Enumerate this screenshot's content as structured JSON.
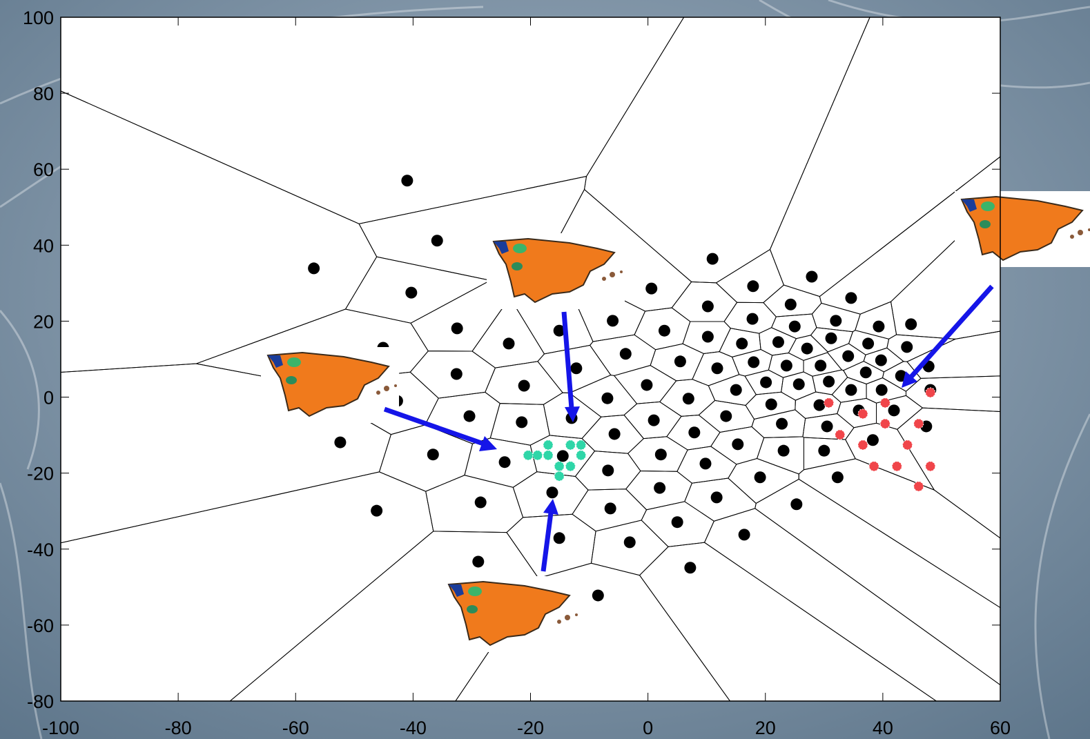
{
  "chart_data": {
    "type": "scatter",
    "xlim": [
      -100,
      60
    ],
    "ylim": [
      -80,
      100
    ],
    "xticks": [
      -100,
      -80,
      -60,
      -40,
      -20,
      0,
      20,
      40,
      60
    ],
    "yticks": [
      -80,
      -60,
      -40,
      -20,
      0,
      20,
      40,
      60,
      80,
      100
    ],
    "voronoi": true,
    "series": [
      {
        "color": "#000000",
        "x": [
          -41.0,
          -35.9,
          -56.9,
          -40.3,
          11.0,
          17.9,
          27.9,
          0.6,
          24.3,
          34.6,
          10.2,
          17.8,
          -6.0,
          2.8,
          25.0,
          32.0,
          39.3,
          44.8,
          -32.5,
          -15.1,
          -23.7,
          10.2,
          16.0,
          22.2,
          27.1,
          31.2,
          37.5,
          44.1,
          -3.8,
          -45.1,
          -12.2,
          5.5,
          11.8,
          18.0,
          23.6,
          29.4,
          34.1,
          39.7,
          47.8,
          -32.6,
          37.1,
          20.1,
          25.7,
          30.8,
          43.1,
          -21.1,
          -0.2,
          15.0,
          34.6,
          39.8,
          48.1,
          -6.9,
          6.9,
          -42.7,
          21.0,
          29.2,
          -30.4,
          -13.0,
          -21.5,
          1.0,
          13.3,
          22.8,
          35.9,
          41.9,
          30.5,
          47.4,
          -5.7,
          7.9,
          -52.4,
          15.3,
          38.3,
          -36.6,
          -14.5,
          -24.4,
          2.2,
          23.1,
          30.0,
          9.8,
          -6.8,
          19.1,
          32.3,
          2.0,
          -16.3,
          -28.5,
          11.7,
          25.3,
          -46.2,
          -6.4,
          5.0,
          -15.1,
          16.4,
          -3.1,
          -28.9,
          7.2,
          -8.5
        ],
        "y": [
          57.0,
          41.2,
          33.9,
          27.5,
          36.4,
          29.2,
          31.7,
          28.6,
          24.4,
          26.1,
          23.9,
          20.6,
          20.1,
          17.5,
          18.6,
          20.1,
          18.6,
          19.2,
          18.1,
          17.5,
          14.1,
          15.9,
          14.1,
          14.5,
          12.8,
          15.5,
          14.1,
          13.2,
          11.4,
          13.0,
          7.6,
          9.4,
          7.6,
          9.2,
          8.3,
          8.3,
          10.8,
          9.7,
          8.1,
          6.1,
          6.5,
          3.9,
          3.4,
          4.1,
          5.6,
          3.0,
          3.2,
          1.9,
          1.9,
          1.9,
          1.9,
          -0.3,
          -0.4,
          -1.0,
          -1.9,
          -2.1,
          -5.0,
          -5.5,
          -6.6,
          -6.1,
          -5.0,
          -7.0,
          -3.5,
          -3.5,
          -7.7,
          -7.7,
          -9.7,
          -9.3,
          -11.9,
          -12.4,
          -11.3,
          -15.1,
          -15.5,
          -17.1,
          -15.1,
          -14.1,
          -14.1,
          -17.5,
          -19.3,
          -21.1,
          -21.1,
          -23.9,
          -25.1,
          -27.7,
          -26.4,
          -28.2,
          -29.9,
          -29.3,
          -32.9,
          -37.1,
          -36.2,
          -38.2,
          -43.3,
          -44.9,
          -52.2
        ]
      },
      {
        "color": "#2fd6a8",
        "x": [
          -20.4,
          -18.8,
          -17.0,
          -17.0,
          -15.1,
          -13.2,
          -11.4,
          -11.4,
          -13.2,
          -15.1
        ],
        "y": [
          -15.3,
          -15.3,
          -12.6,
          -15.3,
          -18.2,
          -12.6,
          -12.6,
          -15.3,
          -18.2,
          -20.8
        ]
      },
      {
        "color": "#f0454a",
        "x": [
          30.8,
          40.4,
          36.6,
          48.1,
          40.4,
          46.1,
          32.7,
          36.6,
          44.2,
          38.5,
          42.4,
          48.1,
          46.1
        ],
        "y": [
          -1.5,
          -1.5,
          -4.4,
          1.2,
          -7.0,
          -7.0,
          -9.9,
          -12.6,
          -12.6,
          -18.2,
          -18.2,
          -18.2,
          -23.5
        ]
      }
    ]
  }
}
